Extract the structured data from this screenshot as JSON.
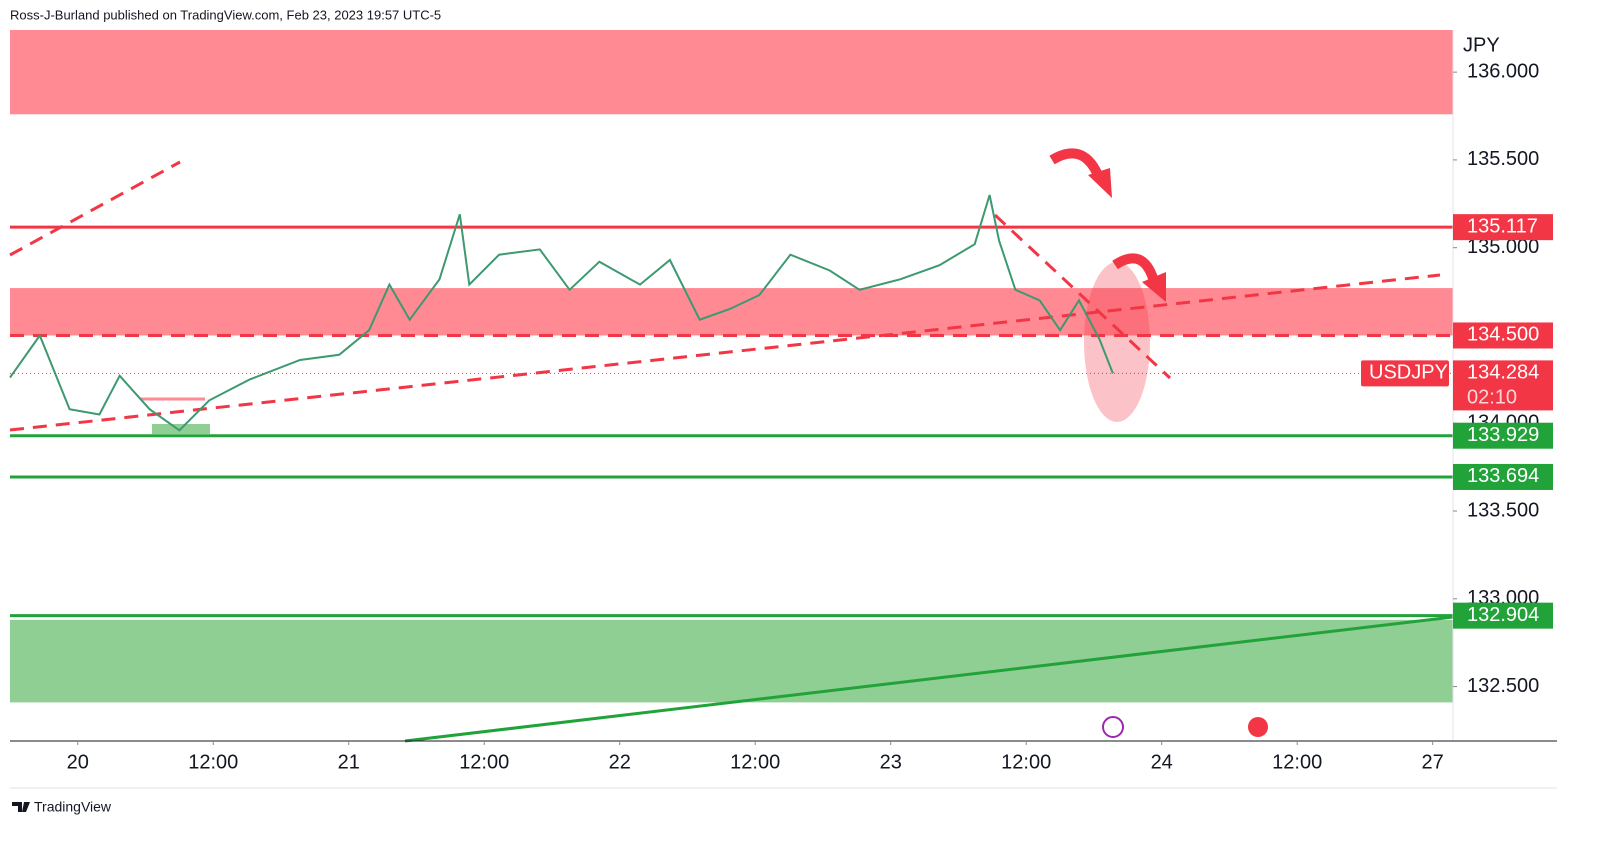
{
  "header": {
    "text": "Ross-J-Burland published on TradingView.com, Feb 23, 2023 19:57 UTC-5"
  },
  "footer": {
    "brand": "TradingView"
  },
  "chart_data": {
    "type": "line",
    "currency": "JPY",
    "x": [
      -0.5,
      -0.28,
      -0.06,
      0.16,
      0.31,
      0.53,
      0.75,
      0.97,
      1.27,
      1.64,
      1.93,
      2.15,
      2.3,
      2.45,
      2.67,
      2.82,
      2.89,
      3.11,
      3.41,
      3.63,
      3.85,
      4.15,
      4.37,
      4.59,
      4.81,
      5.03,
      5.26,
      5.55,
      5.77,
      6.07,
      6.36,
      6.62,
      6.73,
      6.8,
      6.92,
      7.1,
      7.25,
      7.39,
      7.54,
      7.64
    ],
    "series": [
      {
        "name": "USDJPY",
        "color": "#3d9970",
        "values": [
          134.26,
          134.5,
          134.08,
          134.05,
          134.27,
          134.08,
          133.96,
          134.13,
          134.25,
          134.36,
          134.39,
          134.53,
          134.79,
          134.59,
          134.82,
          135.19,
          134.79,
          134.96,
          134.99,
          134.76,
          134.92,
          134.79,
          134.93,
          134.59,
          134.65,
          134.73,
          134.96,
          134.87,
          134.76,
          134.82,
          134.9,
          135.02,
          135.3,
          135.04,
          134.76,
          134.7,
          134.53,
          134.7,
          134.48,
          134.284
        ]
      }
    ],
    "xlim": [
      -0.5,
      10.15
    ],
    "xticks": [
      {
        "value": 0,
        "label": "20"
      },
      {
        "value": 1,
        "label": "12:00"
      },
      {
        "value": 2,
        "label": "21"
      },
      {
        "value": 3,
        "label": "12:00"
      },
      {
        "value": 4,
        "label": "22"
      },
      {
        "value": 5,
        "label": "12:00"
      },
      {
        "value": 6,
        "label": "23"
      },
      {
        "value": 7,
        "label": "12:00"
      },
      {
        "value": 8,
        "label": "24"
      },
      {
        "value": 9,
        "label": "12:00"
      },
      {
        "value": 10,
        "label": "27"
      }
    ],
    "ylim": [
      132.19,
      136.24
    ],
    "yticks": [
      {
        "value": 132.5,
        "label": "132.500"
      },
      {
        "value": 133,
        "label": "133.000"
      },
      {
        "value": 133.5,
        "label": "133.500"
      },
      {
        "value": 134,
        "label": "134.000"
      },
      {
        "value": 134.5,
        "label": "134.500"
      },
      {
        "value": 135,
        "label": "135.000"
      },
      {
        "value": 135.5,
        "label": "135.500"
      },
      {
        "value": 136,
        "label": "136.000"
      }
    ],
    "zones": [
      {
        "from": 135.76,
        "to": 136.24,
        "color": "#ff8a93"
      },
      {
        "from": 134.5,
        "to": 134.77,
        "color": "#ff8a93"
      },
      {
        "from": 132.41,
        "to": 132.88,
        "color": "#8fcf93"
      }
    ],
    "levels": [
      {
        "value": 135.117,
        "color": "#f23645",
        "dashed": false
      },
      {
        "value": 134.5,
        "label": "134.500",
        "color": "#f23645",
        "dashed": true
      },
      {
        "value": 133.929,
        "color": "#22a33a",
        "dashed": false
      },
      {
        "value": 133.694,
        "color": "#22a33a",
        "dashed": false
      },
      {
        "value": 132.904,
        "color": "#22a33a",
        "dashed": false
      }
    ],
    "last_price": {
      "value": 134.284,
      "countdown": "02:10",
      "color": "#f23645"
    }
  }
}
